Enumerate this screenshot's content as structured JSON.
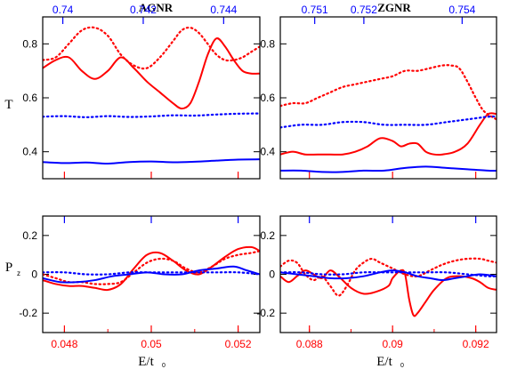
{
  "figure": {
    "titles": {
      "left": "AGNR",
      "right": "ZGNR"
    },
    "xlabel": {
      "main": "E/t",
      "sub": "0"
    },
    "ylabels": {
      "top": "T",
      "bottom_main": "P",
      "bottom_sub": "z"
    },
    "colors": {
      "red": "#ff0000",
      "blue": "#0000ff",
      "axis": "#000000"
    }
  },
  "chart_data": [
    {
      "id": "agnr-T",
      "type": "line",
      "title": "AGNR",
      "ylabel": "T",
      "xlim": [
        0.0475,
        0.0525
      ],
      "ylim": [
        0.3,
        0.9
      ],
      "yticks": [
        0.4,
        0.6,
        0.8
      ],
      "ytick_labels": [
        "0.4",
        "0.6",
        "0.8"
      ],
      "top_axis": {
        "ticks": [
          0.74,
          0.742,
          0.744
        ],
        "labels": [
          "0.74",
          "0.742",
          "0.744"
        ],
        "range": [
          0.7395,
          0.7449
        ]
      },
      "series": [
        {
          "color": "#ff0000",
          "style": "solid",
          "x": [
            0.0475,
            0.0478,
            0.0481,
            0.0484,
            0.0487,
            0.049,
            0.0493,
            0.0496,
            0.0499,
            0.0502,
            0.0505,
            0.0507,
            0.0509,
            0.0511,
            0.0513,
            0.0515,
            0.0517,
            0.0519,
            0.0521,
            0.0523,
            0.0525
          ],
          "y": [
            0.71,
            0.74,
            0.75,
            0.7,
            0.67,
            0.7,
            0.75,
            0.71,
            0.66,
            0.62,
            0.58,
            0.56,
            0.58,
            0.66,
            0.76,
            0.82,
            0.79,
            0.74,
            0.7,
            0.69,
            0.69
          ]
        },
        {
          "color": "#ff0000",
          "style": "dotted",
          "x": [
            0.0475,
            0.0478,
            0.0481,
            0.0484,
            0.0487,
            0.049,
            0.0493,
            0.0496,
            0.0499,
            0.0502,
            0.0505,
            0.0507,
            0.0509,
            0.0511,
            0.0513,
            0.0515,
            0.0517,
            0.0519,
            0.0521,
            0.0523,
            0.0525
          ],
          "y": [
            0.74,
            0.75,
            0.8,
            0.85,
            0.86,
            0.83,
            0.76,
            0.72,
            0.71,
            0.75,
            0.81,
            0.85,
            0.86,
            0.84,
            0.8,
            0.76,
            0.74,
            0.74,
            0.75,
            0.77,
            0.79
          ]
        },
        {
          "color": "#0000ff",
          "style": "dotted",
          "x": [
            0.0475,
            0.048,
            0.0485,
            0.049,
            0.0495,
            0.05,
            0.0505,
            0.051,
            0.0515,
            0.052,
            0.0525
          ],
          "y": [
            0.53,
            0.532,
            0.528,
            0.532,
            0.529,
            0.531,
            0.535,
            0.534,
            0.538,
            0.541,
            0.542
          ]
        },
        {
          "color": "#0000ff",
          "style": "solid",
          "x": [
            0.0475,
            0.048,
            0.0485,
            0.049,
            0.0495,
            0.05,
            0.0505,
            0.051,
            0.0515,
            0.052,
            0.0525
          ],
          "y": [
            0.362,
            0.358,
            0.36,
            0.356,
            0.362,
            0.364,
            0.361,
            0.363,
            0.367,
            0.371,
            0.372
          ]
        }
      ]
    },
    {
      "id": "zgnr-T",
      "type": "line",
      "title": "ZGNR",
      "ylabel": "T",
      "xlim": [
        0.0873,
        0.0925
      ],
      "ylim": [
        0.3,
        0.9
      ],
      "yticks": [
        0.4,
        0.6,
        0.8
      ],
      "ytick_labels": [
        "0.4",
        "0.6",
        "0.8"
      ],
      "top_axis": {
        "ticks": [
          0.751,
          0.752,
          0.754
        ],
        "labels": [
          "0.751",
          "0.752",
          "0.754"
        ],
        "range": [
          0.7503,
          0.7547
        ]
      },
      "series": [
        {
          "color": "#ff0000",
          "style": "dotted",
          "x": [
            0.0873,
            0.0876,
            0.0879,
            0.0882,
            0.0885,
            0.0888,
            0.0891,
            0.0894,
            0.0897,
            0.09,
            0.0903,
            0.0906,
            0.0909,
            0.0912,
            0.0914,
            0.0916,
            0.0918,
            0.092,
            0.0922,
            0.0925
          ],
          "y": [
            0.57,
            0.58,
            0.58,
            0.6,
            0.62,
            0.64,
            0.65,
            0.66,
            0.67,
            0.68,
            0.7,
            0.7,
            0.71,
            0.72,
            0.72,
            0.71,
            0.66,
            0.6,
            0.55,
            0.52
          ]
        },
        {
          "color": "#ff0000",
          "style": "solid",
          "x": [
            0.0873,
            0.0876,
            0.0879,
            0.0882,
            0.0885,
            0.0888,
            0.0891,
            0.0894,
            0.0897,
            0.09,
            0.0902,
            0.0904,
            0.0906,
            0.0908,
            0.091,
            0.0912,
            0.0915,
            0.0918,
            0.0921,
            0.0923,
            0.0925
          ],
          "y": [
            0.39,
            0.4,
            0.39,
            0.39,
            0.39,
            0.39,
            0.4,
            0.42,
            0.45,
            0.44,
            0.42,
            0.43,
            0.43,
            0.4,
            0.39,
            0.39,
            0.4,
            0.43,
            0.5,
            0.54,
            0.54
          ]
        },
        {
          "color": "#0000ff",
          "style": "dotted",
          "x": [
            0.0873,
            0.0878,
            0.0883,
            0.0888,
            0.0893,
            0.0898,
            0.0903,
            0.0908,
            0.0913,
            0.0918,
            0.0923,
            0.0925
          ],
          "y": [
            0.49,
            0.5,
            0.5,
            0.51,
            0.51,
            0.5,
            0.5,
            0.5,
            0.51,
            0.52,
            0.53,
            0.53
          ]
        },
        {
          "color": "#0000ff",
          "style": "solid",
          "x": [
            0.0873,
            0.0878,
            0.0883,
            0.0888,
            0.0893,
            0.0898,
            0.0903,
            0.0908,
            0.0913,
            0.0918,
            0.0923,
            0.0925
          ],
          "y": [
            0.33,
            0.33,
            0.325,
            0.325,
            0.33,
            0.33,
            0.34,
            0.345,
            0.34,
            0.335,
            0.33,
            0.33
          ]
        }
      ]
    },
    {
      "id": "agnr-Pz",
      "type": "line",
      "ylabel": "Pz",
      "xlim": [
        0.0475,
        0.0525
      ],
      "ylim": [
        -0.3,
        0.3
      ],
      "yticks": [
        -0.2,
        0,
        0.2
      ],
      "ytick_labels": [
        "-0.2",
        "0",
        "0.2"
      ],
      "xticks": [
        0.048,
        0.05,
        0.052
      ],
      "xtick_labels": [
        "0.048",
        "0.05",
        "0.052"
      ],
      "series": [
        {
          "color": "#ff0000",
          "style": "solid",
          "x": [
            0.0475,
            0.0478,
            0.0481,
            0.0484,
            0.0487,
            0.049,
            0.0493,
            0.0496,
            0.0499,
            0.0502,
            0.0505,
            0.0508,
            0.0511,
            0.0514,
            0.0517,
            0.052,
            0.0523,
            0.0525
          ],
          "y": [
            -0.03,
            -0.05,
            -0.06,
            -0.06,
            -0.07,
            -0.08,
            -0.05,
            0.03,
            0.1,
            0.11,
            0.07,
            0.02,
            0.0,
            0.04,
            0.09,
            0.13,
            0.14,
            0.12
          ]
        },
        {
          "color": "#ff0000",
          "style": "dotted",
          "x": [
            0.0475,
            0.0478,
            0.0481,
            0.0484,
            0.0487,
            0.049,
            0.0493,
            0.0496,
            0.0499,
            0.0502,
            0.0505,
            0.0508,
            0.0511,
            0.0514,
            0.0517,
            0.052,
            0.0523,
            0.0525
          ],
          "y": [
            0.0,
            -0.02,
            -0.04,
            -0.04,
            -0.05,
            -0.05,
            -0.04,
            0.01,
            0.06,
            0.08,
            0.07,
            0.03,
            0.01,
            0.04,
            0.08,
            0.1,
            0.11,
            0.12
          ]
        },
        {
          "color": "#0000ff",
          "style": "dotted",
          "x": [
            0.0475,
            0.048,
            0.0485,
            0.049,
            0.0495,
            0.05,
            0.0505,
            0.051,
            0.0515,
            0.052,
            0.0525
          ],
          "y": [
            0.01,
            0.01,
            0.0,
            0.0,
            0.01,
            0.01,
            0.01,
            0.01,
            0.01,
            0.01,
            0.0
          ]
        },
        {
          "color": "#0000ff",
          "style": "solid",
          "x": [
            0.0475,
            0.0479,
            0.0483,
            0.0487,
            0.0491,
            0.0495,
            0.0499,
            0.0503,
            0.0507,
            0.0511,
            0.0515,
            0.0519,
            0.0522,
            0.0525
          ],
          "y": [
            -0.02,
            -0.04,
            -0.04,
            -0.03,
            -0.01,
            0.0,
            0.01,
            0.0,
            0.0,
            0.02,
            0.03,
            0.04,
            0.02,
            0.0
          ]
        }
      ]
    },
    {
      "id": "zgnr-Pz",
      "type": "line",
      "ylabel": "Pz",
      "xlim": [
        0.0873,
        0.0925
      ],
      "ylim": [
        -0.3,
        0.3
      ],
      "yticks": [
        -0.2,
        0,
        0.2
      ],
      "ytick_labels": [
        "-0.2",
        "0",
        "0.2"
      ],
      "xticks": [
        0.088,
        0.09,
        0.092
      ],
      "xtick_labels": [
        "0.088",
        "0.09",
        "0.092"
      ],
      "series": [
        {
          "color": "#ff0000",
          "style": "dotted",
          "x": [
            0.0873,
            0.0875,
            0.0877,
            0.0879,
            0.0881,
            0.0883,
            0.0885,
            0.0887,
            0.0889,
            0.0891,
            0.0893,
            0.0895,
            0.0897,
            0.09,
            0.0903,
            0.0906,
            0.0909,
            0.0912,
            0.0915,
            0.0918,
            0.0921,
            0.0923,
            0.0925
          ],
          "y": [
            0.04,
            0.07,
            0.06,
            0.0,
            -0.03,
            -0.01,
            -0.06,
            -0.11,
            -0.06,
            0.02,
            0.06,
            0.08,
            0.06,
            0.03,
            0.0,
            -0.01,
            0.02,
            0.05,
            0.07,
            0.08,
            0.08,
            0.07,
            0.06
          ]
        },
        {
          "color": "#ff0000",
          "style": "solid",
          "x": [
            0.0873,
            0.0875,
            0.0877,
            0.0879,
            0.0881,
            0.0883,
            0.0885,
            0.0887,
            0.089,
            0.0893,
            0.0896,
            0.0899,
            0.09,
            0.0902,
            0.0903,
            0.0904,
            0.0905,
            0.0906,
            0.0908,
            0.091,
            0.0913,
            0.0916,
            0.0919,
            0.0921,
            0.0923,
            0.0925
          ],
          "y": [
            -0.01,
            -0.04,
            -0.01,
            0.02,
            0.0,
            -0.02,
            0.02,
            -0.01,
            -0.07,
            -0.1,
            -0.09,
            -0.06,
            -0.02,
            0.02,
            0.0,
            -0.13,
            -0.21,
            -0.2,
            -0.14,
            -0.08,
            -0.02,
            -0.01,
            -0.02,
            -0.04,
            -0.07,
            -0.08
          ]
        },
        {
          "color": "#0000ff",
          "style": "dotted",
          "x": [
            0.0873,
            0.0878,
            0.0883,
            0.0888,
            0.0893,
            0.0898,
            0.0903,
            0.0908,
            0.0913,
            0.0918,
            0.0923,
            0.0925
          ],
          "y": [
            0.01,
            0.01,
            0.0,
            0.0,
            0.01,
            0.01,
            0.01,
            0.01,
            0.01,
            0.0,
            -0.01,
            -0.01
          ]
        },
        {
          "color": "#0000ff",
          "style": "solid",
          "x": [
            0.0873,
            0.0877,
            0.0881,
            0.0885,
            0.0889,
            0.0893,
            0.0897,
            0.09,
            0.0903,
            0.0906,
            0.0909,
            0.0912,
            0.0915,
            0.0918,
            0.0921,
            0.0925
          ],
          "y": [
            0.01,
            0.0,
            -0.01,
            -0.02,
            -0.02,
            -0.01,
            0.01,
            0.02,
            0.01,
            -0.01,
            -0.02,
            -0.03,
            -0.02,
            -0.01,
            0.0,
            -0.01
          ]
        }
      ]
    }
  ]
}
